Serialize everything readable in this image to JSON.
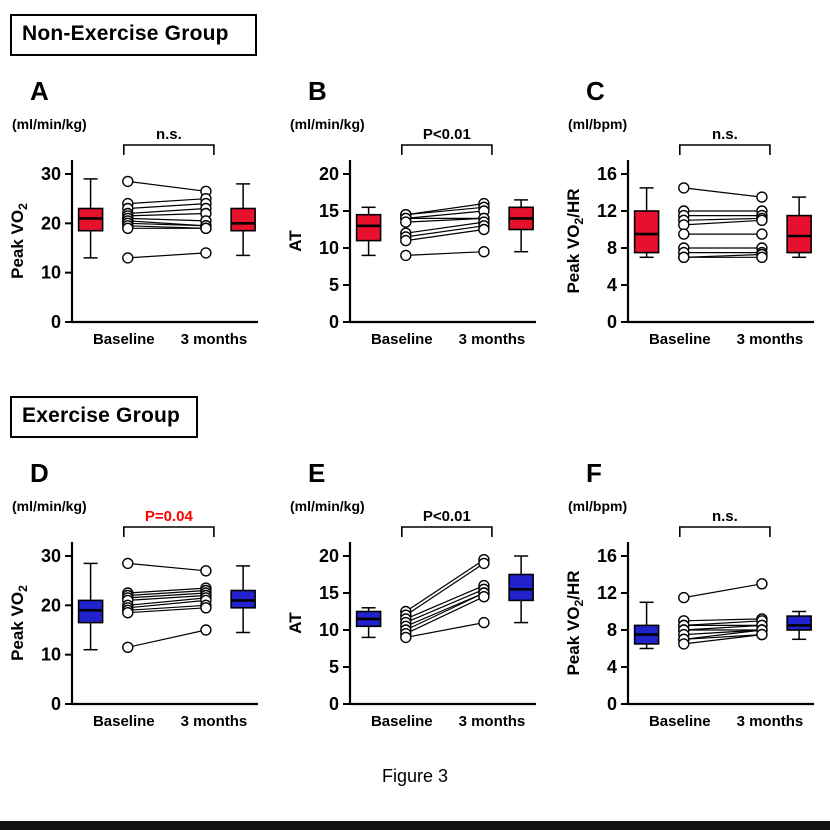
{
  "page": {
    "group1_header": "Non-Exercise Group",
    "group2_header": "Exercise Group",
    "caption": "Figure 3"
  },
  "colors": {
    "non_exercise_box": "#e8112d",
    "exercise_box": "#2222cc",
    "sig_red": "#ff0000",
    "axis": "#000000"
  },
  "chart_data": [
    {
      "type": "paired-box-scatter",
      "panel": "A",
      "group": "Non-Exercise Group",
      "unit": "(ml/min/kg)",
      "sig": {
        "label": "n.s.",
        "color": "#000000"
      },
      "ylabel": "Peak VO_2",
      "ylim": [
        0,
        30
      ],
      "yticks": [
        0,
        10,
        20,
        30
      ],
      "categories": [
        "Baseline",
        "3 months"
      ],
      "box_color": "#e8112d",
      "boxes": {
        "baseline": {
          "lo": 13,
          "q1": 18.5,
          "med": 21,
          "q3": 23,
          "hi": 29
        },
        "three_months": {
          "lo": 13.5,
          "q1": 18.5,
          "med": 20,
          "q3": 23,
          "hi": 28
        }
      },
      "pairs": [
        [
          28.5,
          26.5
        ],
        [
          24,
          25
        ],
        [
          23,
          24
        ],
        [
          22,
          23
        ],
        [
          21.5,
          22
        ],
        [
          21,
          20.5
        ],
        [
          20.5,
          19.5
        ],
        [
          20,
          19.5
        ],
        [
          19.5,
          19
        ],
        [
          19,
          19
        ],
        [
          13,
          14
        ]
      ]
    },
    {
      "type": "paired-box-scatter",
      "panel": "B",
      "group": "Non-Exercise Group",
      "unit": "(ml/min/kg)",
      "sig": {
        "label": "P<0.01",
        "color": "#000000"
      },
      "ylabel": "AT",
      "ylim": [
        0,
        20
      ],
      "yticks": [
        0,
        5,
        10,
        15,
        20
      ],
      "categories": [
        "Baseline",
        "3 months"
      ],
      "box_color": "#e8112d",
      "boxes": {
        "baseline": {
          "lo": 9,
          "q1": 11,
          "med": 13,
          "q3": 14.5,
          "hi": 15.5
        },
        "three_months": {
          "lo": 9.5,
          "q1": 12.5,
          "med": 14,
          "q3": 15.5,
          "hi": 16.5
        }
      },
      "pairs": [
        [
          14.5,
          16
        ],
        [
          14.5,
          15.5
        ],
        [
          14,
          15
        ],
        [
          14,
          14
        ],
        [
          13.5,
          14
        ],
        [
          12,
          13.5
        ],
        [
          11.5,
          13
        ],
        [
          11,
          12.5
        ],
        [
          9,
          9.5
        ]
      ]
    },
    {
      "type": "paired-box-scatter",
      "panel": "C",
      "group": "Non-Exercise Group",
      "unit": "(ml/bpm)",
      "sig": {
        "label": "n.s.",
        "color": "#000000"
      },
      "ylabel": "Peak VO_2/HR",
      "ylim": [
        0,
        16
      ],
      "yticks": [
        0,
        4,
        8,
        12,
        16
      ],
      "categories": [
        "Baseline",
        "3 months"
      ],
      "box_color": "#e8112d",
      "boxes": {
        "baseline": {
          "lo": 7,
          "q1": 7.5,
          "med": 9.5,
          "q3": 12,
          "hi": 14.5
        },
        "three_months": {
          "lo": 7,
          "q1": 7.5,
          "med": 9.3,
          "q3": 11.5,
          "hi": 13.5
        }
      },
      "pairs": [
        [
          14.5,
          13.5
        ],
        [
          12,
          12
        ],
        [
          11.5,
          11.5
        ],
        [
          11,
          11.2
        ],
        [
          10.5,
          11
        ],
        [
          9.5,
          9.5
        ],
        [
          8,
          8
        ],
        [
          7.5,
          7.5
        ],
        [
          7,
          7.3
        ],
        [
          7,
          7
        ]
      ]
    },
    {
      "type": "paired-box-scatter",
      "panel": "D",
      "group": "Exercise Group",
      "unit": "(ml/min/kg)",
      "sig": {
        "label": "P=0.04",
        "color": "#ff0000"
      },
      "ylabel": "Peak VO_2",
      "ylim": [
        0,
        30
      ],
      "yticks": [
        0,
        10,
        20,
        30
      ],
      "categories": [
        "Baseline",
        "3 months"
      ],
      "box_color": "#2222cc",
      "boxes": {
        "baseline": {
          "lo": 11,
          "q1": 16.5,
          "med": 19,
          "q3": 21,
          "hi": 28.5
        },
        "three_months": {
          "lo": 14.5,
          "q1": 19.5,
          "med": 21,
          "q3": 23,
          "hi": 28
        }
      },
      "pairs": [
        [
          28.5,
          27
        ],
        [
          22.5,
          23.5
        ],
        [
          22,
          23
        ],
        [
          21.5,
          22.5
        ],
        [
          21,
          22
        ],
        [
          20,
          21.5
        ],
        [
          19.5,
          21
        ],
        [
          19,
          20
        ],
        [
          18.5,
          19.5
        ],
        [
          11.5,
          15
        ]
      ]
    },
    {
      "type": "paired-box-scatter",
      "panel": "E",
      "group": "Exercise Group",
      "unit": "(ml/min/kg)",
      "sig": {
        "label": "P<0.01",
        "color": "#000000"
      },
      "ylabel": "AT",
      "ylim": [
        0,
        20
      ],
      "yticks": [
        0,
        5,
        10,
        15,
        20
      ],
      "categories": [
        "Baseline",
        "3 months"
      ],
      "box_color": "#2222cc",
      "boxes": {
        "baseline": {
          "lo": 9,
          "q1": 10.5,
          "med": 11.5,
          "q3": 12.5,
          "hi": 13
        },
        "three_months": {
          "lo": 11,
          "q1": 14,
          "med": 15.5,
          "q3": 17.5,
          "hi": 20
        }
      },
      "pairs": [
        [
          12.5,
          19.5
        ],
        [
          12,
          19
        ],
        [
          11.5,
          16
        ],
        [
          11,
          15.5
        ],
        [
          10.5,
          15
        ],
        [
          10,
          15
        ],
        [
          9.5,
          14.5
        ],
        [
          9,
          11
        ]
      ]
    },
    {
      "type": "paired-box-scatter",
      "panel": "F",
      "group": "Exercise Group",
      "unit": "(ml/bpm)",
      "sig": {
        "label": "n.s.",
        "color": "#000000"
      },
      "ylabel": "Peak VO_2/HR",
      "ylim": [
        0,
        16
      ],
      "yticks": [
        0,
        4,
        8,
        12,
        16
      ],
      "categories": [
        "Baseline",
        "3 months"
      ],
      "box_color": "#2222cc",
      "boxes": {
        "baseline": {
          "lo": 6,
          "q1": 6.5,
          "med": 7.5,
          "q3": 8.5,
          "hi": 11
        },
        "three_months": {
          "lo": 7,
          "q1": 8,
          "med": 8.5,
          "q3": 9.5,
          "hi": 10
        }
      },
      "pairs": [
        [
          11.5,
          13
        ],
        [
          9,
          9.2
        ],
        [
          8.5,
          9
        ],
        [
          8.5,
          8.5
        ],
        [
          8,
          8.5
        ],
        [
          8,
          8
        ],
        [
          7.5,
          8
        ],
        [
          7,
          8
        ],
        [
          7,
          7.5
        ],
        [
          6.5,
          7.5
        ]
      ]
    }
  ]
}
